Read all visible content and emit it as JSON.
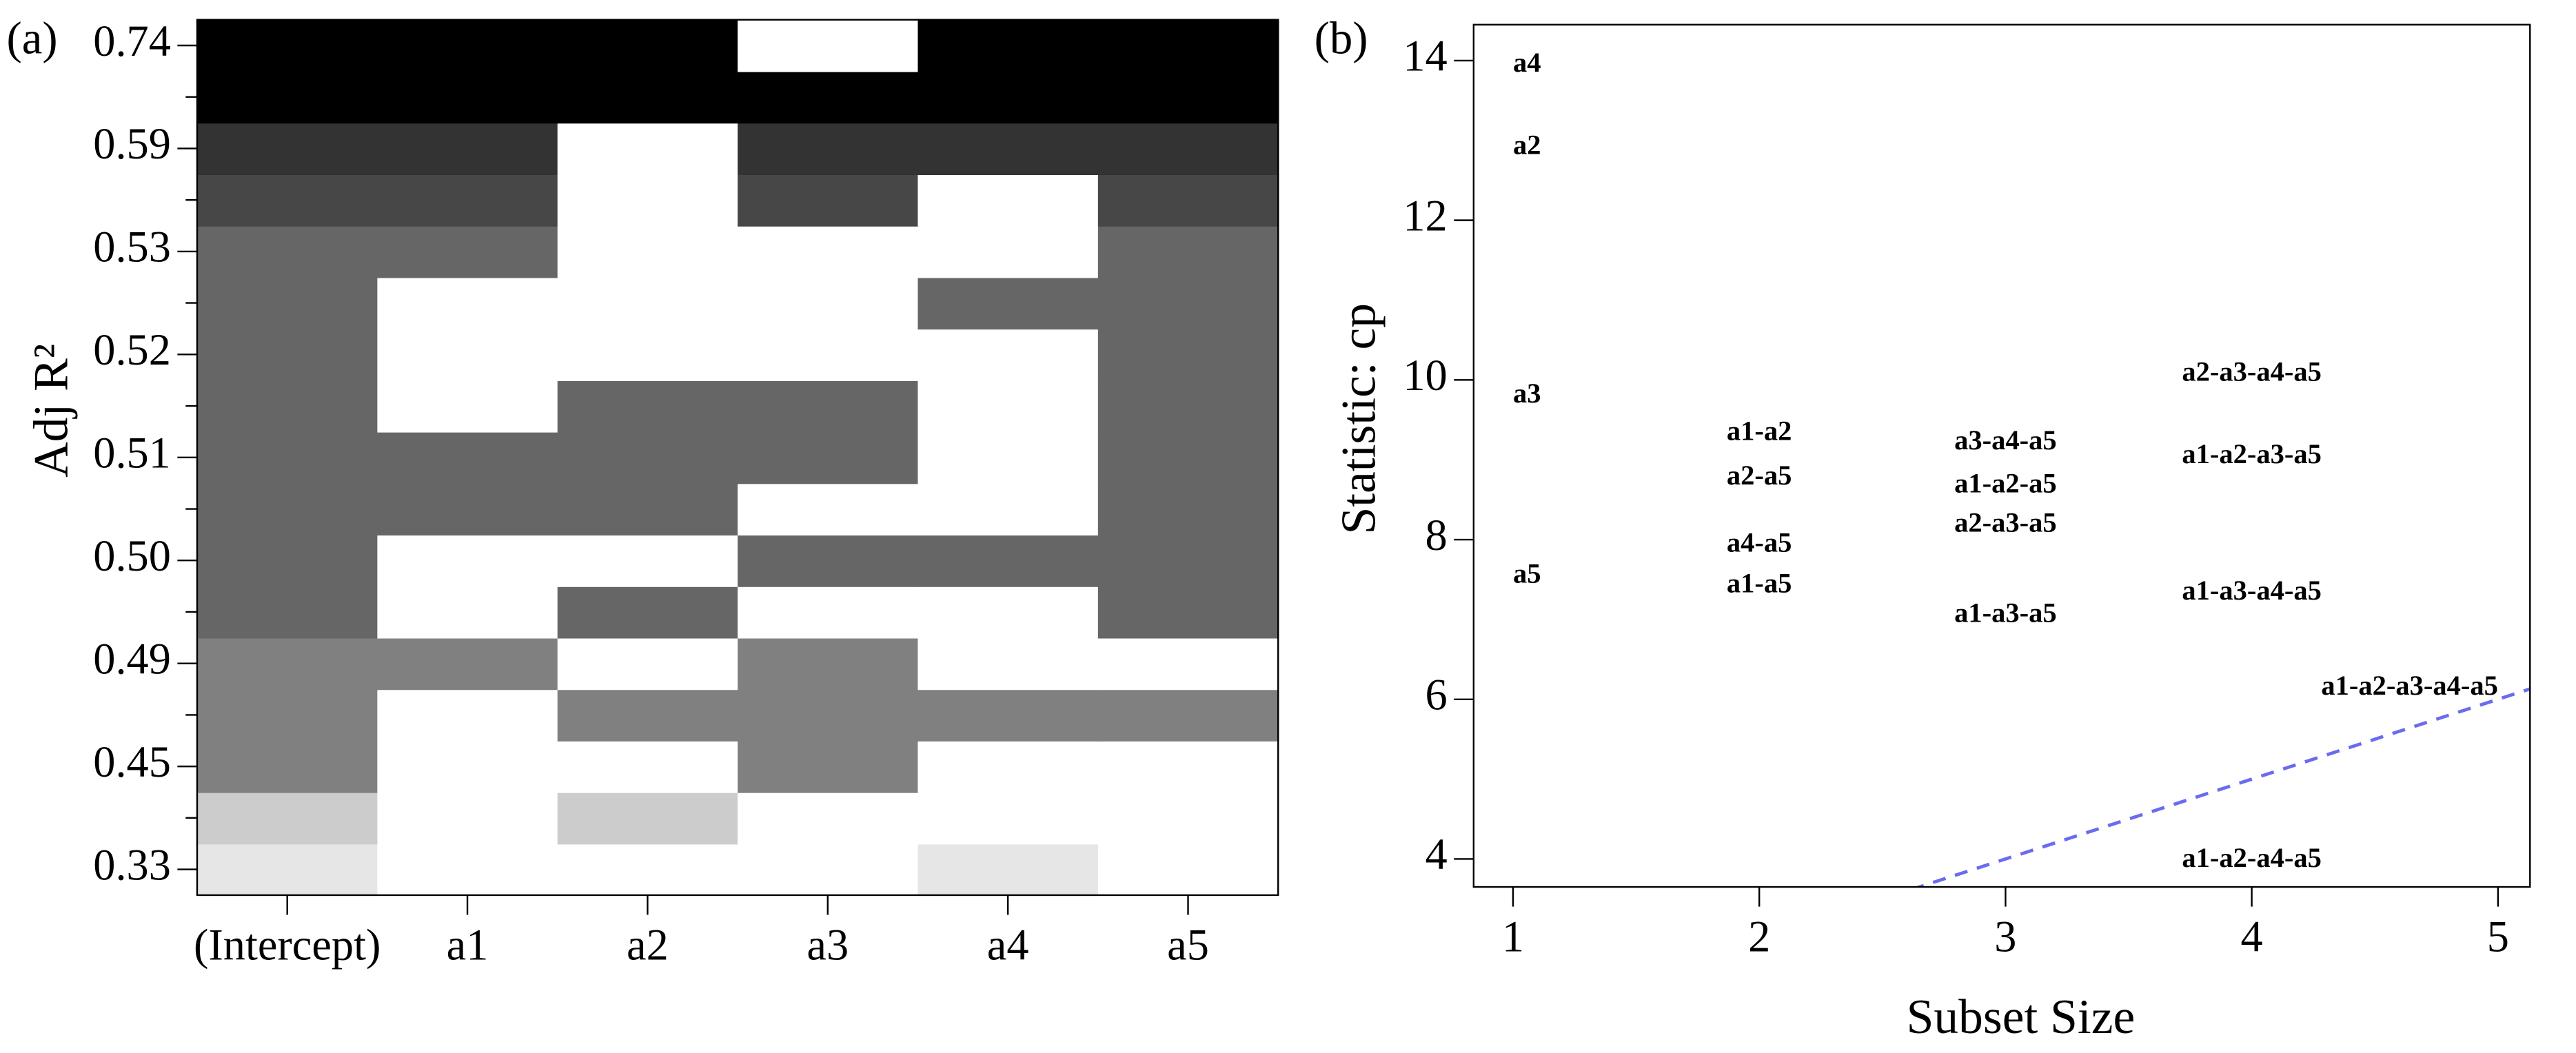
{
  "chart_data": [
    {
      "type": "heatmap",
      "panel_label": "(a)",
      "ylabel": "Adj R²",
      "categories": [
        "(Intercept)",
        "a1",
        "a2",
        "a3",
        "a4",
        "a5"
      ],
      "row_labels": [
        "0.33",
        null,
        "0.45",
        null,
        "0.49",
        null,
        "0.50",
        null,
        "0.51",
        null,
        "0.52",
        null,
        "0.53",
        null,
        "0.59",
        null,
        "0.74"
      ],
      "row_colors": [
        "#e6e6e6",
        "#cccccc",
        "#808080",
        "#808080",
        "#808080",
        "#666666",
        "#666666",
        "#666666",
        "#666666",
        "#666666",
        "#666666",
        "#666666",
        "#666666",
        "#474747",
        "#333333",
        "#000000",
        "#000000"
      ],
      "matrix": [
        [
          1,
          0,
          0,
          0,
          1,
          0
        ],
        [
          1,
          0,
          1,
          0,
          0,
          0
        ],
        [
          1,
          0,
          0,
          1,
          0,
          0
        ],
        [
          1,
          0,
          1,
          1,
          1,
          1
        ],
        [
          1,
          1,
          0,
          1,
          0,
          0
        ],
        [
          1,
          0,
          1,
          0,
          0,
          1
        ],
        [
          1,
          0,
          0,
          1,
          1,
          1
        ],
        [
          1,
          1,
          1,
          0,
          0,
          1
        ],
        [
          1,
          1,
          1,
          1,
          0,
          1
        ],
        [
          1,
          0,
          1,
          1,
          0,
          1
        ],
        [
          1,
          0,
          0,
          0,
          0,
          1
        ],
        [
          1,
          0,
          0,
          0,
          1,
          1
        ],
        [
          1,
          1,
          0,
          0,
          0,
          1
        ],
        [
          1,
          1,
          0,
          1,
          0,
          1
        ],
        [
          1,
          1,
          0,
          1,
          1,
          1
        ],
        [
          1,
          1,
          1,
          1,
          1,
          1
        ],
        [
          1,
          1,
          1,
          0,
          1,
          1
        ]
      ]
    },
    {
      "type": "scatter",
      "panel_label": "(b)",
      "xlabel": "Subset Size",
      "ylabel": "Statistic: cp",
      "xlim": [
        0.84,
        5.13
      ],
      "ylim": [
        3.65,
        14.45
      ],
      "xticks": [
        1,
        2,
        3,
        4,
        5
      ],
      "yticks": [
        4,
        6,
        8,
        10,
        12,
        14
      ],
      "labels": [
        "a4",
        "a2",
        "a3",
        "a5",
        "a1-a2",
        "a2-a5",
        "a4-a5",
        "a1-a5",
        "a3-a4-a5",
        "a1-a2-a5",
        "a2-a3-a5",
        "a1-a3-a5",
        "a2-a3-a4-a5",
        "a1-a2-a3-a5",
        "a1-a3-a4-a5",
        "a1-a2-a4-a5",
        "a1-a2-a3-a4-a5"
      ],
      "x": [
        1,
        1,
        1,
        1,
        2,
        2,
        2,
        2,
        3,
        3,
        3,
        3,
        4,
        4,
        4,
        4,
        5
      ],
      "y": [
        13.94,
        12.91,
        9.8,
        7.54,
        9.33,
        8.77,
        7.93,
        7.42,
        9.21,
        8.67,
        8.18,
        7.05,
        10.07,
        9.04,
        7.33,
        3.98,
        6.14
      ],
      "reference_line": {
        "slope": 1,
        "intercept": 1
      },
      "reference_color": "#6b6bef"
    }
  ]
}
